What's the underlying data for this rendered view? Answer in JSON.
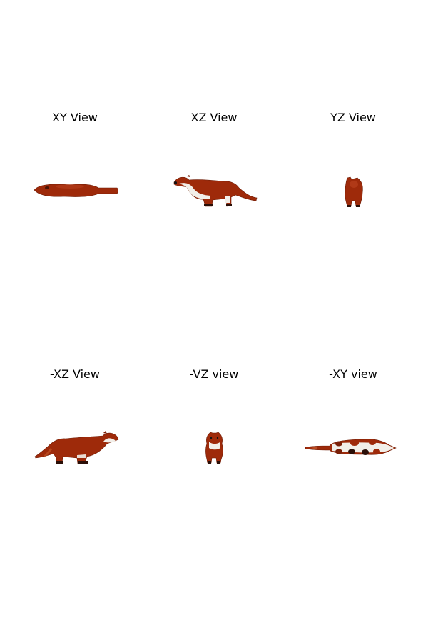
{
  "views": [
    {
      "title": "XY View"
    },
    {
      "title": "XZ View"
    },
    {
      "title": "YZ View"
    },
    {
      "title": "-XZ View"
    },
    {
      "title": "-VZ view"
    },
    {
      "title": "-XY view"
    }
  ],
  "colors": {
    "fur": "#9e2a0a",
    "fur_dark": "#6e1c06",
    "belly": "#f2efe9",
    "feet": "#2a0f08"
  }
}
